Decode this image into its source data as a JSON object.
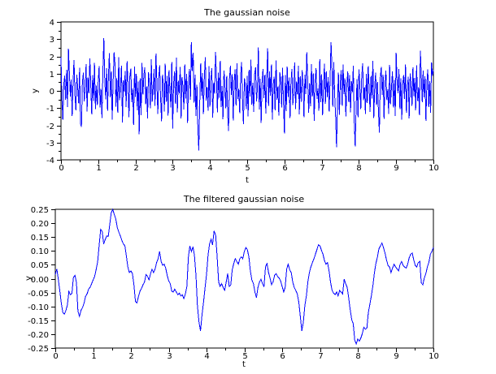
{
  "figure": {
    "background": "#ffffff",
    "axis_color": "#000000",
    "line_color": "#0000ff"
  },
  "chart_data": [
    {
      "type": "line",
      "title": "The gaussian noise",
      "xlabel": "t",
      "ylabel": "y",
      "xlim": [
        0,
        10
      ],
      "ylim": [
        -4,
        4
      ],
      "x_ticks": [
        0,
        1,
        2,
        3,
        4,
        5,
        6,
        7,
        8,
        9,
        10
      ],
      "x_tick_labels": [
        "0",
        "1",
        "2",
        "3",
        "4",
        "5",
        "6",
        "7",
        "8",
        "9",
        "10"
      ],
      "y_ticks": [
        4,
        3,
        2,
        1,
        0,
        -1,
        -2,
        -3,
        -4
      ],
      "y_tick_labels": [
        "4",
        "3",
        "2",
        "1",
        "0",
        "-1",
        "-2",
        "-3",
        "-4"
      ],
      "x_minor_step": 0.5,
      "y_minor_step": 0.5,
      "grid": false,
      "legend": null,
      "color": "#0000ff",
      "x_start": 0,
      "x_step": 0.025,
      "y_values": [
        1.95,
        -0.42,
        -1.68,
        0.35,
        0.88,
        -0.51,
        1.22,
        -0.94,
        2.45,
        1.1,
        -0.33,
        0.67,
        -1.45,
        0.52,
        1.78,
        -0.26,
        -1.12,
        0.94,
        0.18,
        -0.73,
        1.35,
        -1.92,
        -2.08,
        0.44,
        1.05,
        -0.61,
        0.23,
        1.56,
        -1.21,
        0.78,
        -0.15,
        1.88,
        0.41,
        -1.37,
        0.92,
        -0.58,
        1.62,
        -1.05,
        0.31,
        -0.82,
        0.57,
        1.44,
        -0.96,
        0.12,
        -1.58,
        1.02,
        3.05,
        0.66,
        -0.49,
        1.31,
        -1.15,
        0.85,
        2.18,
        -0.37,
        1.12,
        -1.66,
        0.48,
        2.24,
        1.58,
        -0.91,
        0.73,
        -1.28,
        1.95,
        -0.54,
        0.29,
        1.47,
        -1.83,
        0.61,
        -0.08,
        1.16,
        -0.95,
        1.71,
        0.38,
        -1.52,
        0.84,
        1.29,
        -0.67,
        0.15,
        -1.98,
        1.41,
        -0.36,
        0.98,
        -1.14,
        0.55,
        -2.52,
        0.72,
        -1.41,
        1.63,
        -0.22,
        0.89,
        1.37,
        -0.78,
        0.26,
        -1.59,
        1.08,
        0.47,
        -1.02,
        1.84,
        -0.63,
        0.19,
        1.26,
        -0.88,
        2.16,
        0.53,
        -1.34,
        0.71,
        1.49,
        -0.41,
        -1.76,
        0.95,
        0.34,
        -1.19,
        1.58,
        -0.64,
        0.87,
        -1.43,
        1.21,
        0.06,
        -0.97,
        1.66,
        -2.18,
        0.42,
        1.13,
        -0.76,
        1.92,
        -1.24,
        0.58,
        -0.13,
        1.38,
        -1.61,
        0.81,
        0.24,
        -1.08,
        1.54,
        -0.45,
        0.99,
        -1.87,
        0.62,
        1.27,
        -0.52,
        2.82,
        1.15,
        2.21,
        -0.68,
        0.93,
        -1.47,
        0.36,
        -2.05,
        -3.45,
        -0.84,
        1.61,
        -0.29,
        1.04,
        -1.33,
        0.77,
        1.96,
        -0.56,
        0.21,
        -1.15,
        1.43,
        -0.91,
        0.64,
        1.32,
        -1.56,
        0.48,
        -0.17,
        2.26,
        0.83,
        -1.25,
        1.07,
        -0.39,
        1.74,
        -0.94,
        0.28,
        -1.64,
        1.18,
        0.51,
        -1.02,
        0.86,
        -1.38,
        -2.32,
        0.69,
        1.45,
        -0.23,
        0.97,
        -1.71,
        0.44,
        1.24,
        -0.85,
        1.59,
        -0.46,
        0.11,
        -1.29,
        0.92,
        1.67,
        -0.58,
        -1.94,
        0.74,
        0.32,
        -1.06,
        0.88,
        -1.48,
        1.22,
        -0.34,
        1.81,
        -0.79,
        0.46,
        -1.23,
        0.98,
        1.36,
        -0.62,
        0.14,
        2.52,
        -1.09,
        0.71,
        -1.85,
        0.57,
        1.28,
        -0.42,
        0.93,
        -1.31,
        0.66,
        2.47,
        -0.87,
        1.14,
        -0.28,
        1.53,
        -1.67,
        0.39,
        0.82,
        -1.12,
        1.76,
        -0.51,
        0.25,
        -1.44,
        1.08,
        0.63,
        -0.96,
        1.35,
        -0.74,
        -2.48,
        0.91,
        -1.18,
        1.42,
        -0.35,
        0.78,
        -1.58,
        0.49,
        1.26,
        -0.83,
        0.17,
        1.64,
        -1.05,
        0.54,
        -0.21,
        1.47,
        -1.36,
        0.85,
        -0.64,
        1.19,
        0.37,
        -1.52,
        0.94,
        -0.18,
        2.23,
        0.68,
        -1.27,
        0.45,
        -0.89,
        1.55,
        -0.33,
        1.02,
        -1.73,
        0.59,
        1.31,
        -0.48,
        0.13,
        -1.16,
        1.84,
        -0.67,
        0.96,
        -1.42,
        0.29,
        1.58,
        -0.75,
        1.12,
        -0.37,
        0.81,
        -1.21,
        0.52,
        2.83,
        1.45,
        -0.92,
        1.68,
        -0.26,
        -1.55,
        -3.28,
        -0.61,
        1.07,
        -1.39,
        0.43,
        1.21,
        -0.86,
        1.52,
        -0.19,
        0.74,
        -1.48,
        0.31,
        1.13,
        -0.65,
        0.92,
        -1.24,
        0.56,
        -0.08,
        1.46,
        -1.81,
        -3.22,
        -0.94,
        0.68,
        -1.52,
        1.25,
        0.41,
        -1.07,
        0.79,
        1.61,
        -0.53,
        0.22,
        -1.35,
        0.98,
        -0.71,
        1.44,
        0.16,
        -1.22,
        0.87,
        -0.44,
        1.73,
        -1.58,
        0.34,
        1.06,
        -0.82,
        0.51,
        -1.16,
        -2.42,
        0.77,
        1.39,
        -0.24,
        0.95,
        -1.62,
        0.43,
        1.18,
        -0.55,
        0.09,
        -1.33,
        1.51,
        -0.78,
        0.26,
        1.12,
        -0.96,
        0.64,
        -1.45,
        2.21,
        0.58,
        -0.14,
        1.27,
        -1.05,
        0.72,
        -1.68,
        0.36,
        0.91,
        -0.47,
        1.54,
        -1.26,
        0.19,
        0.83,
        -1.59,
        1.02,
        0.45,
        -0.88,
        1.36,
        -0.31,
        0.76,
        -1.13,
        1.48,
        -0.59,
        0.21,
        -1.41,
        2.32,
        0.94,
        -0.66,
        1.17,
        -0.38,
        0.85,
        -1.74,
        0.49,
        1.24,
        -0.93,
        0.57,
        -1.28,
        1.65,
        0.88,
        1.21
      ]
    },
    {
      "type": "line",
      "title": "The filtered gaussian noise",
      "xlabel": "t",
      "ylabel": "y",
      "xlim": [
        0,
        10
      ],
      "ylim": [
        -0.25,
        0.25
      ],
      "x_ticks": [
        0,
        1,
        2,
        3,
        4,
        5,
        6,
        7,
        8,
        9,
        10
      ],
      "x_tick_labels": [
        "0",
        "1",
        "2",
        "3",
        "4",
        "5",
        "6",
        "7",
        "8",
        "9",
        "10"
      ],
      "y_ticks": [
        0.25,
        0.2,
        0.15,
        0.1,
        0.05,
        0.0,
        -0.05,
        -0.1,
        -0.15,
        -0.2,
        -0.25
      ],
      "y_tick_labels": [
        "0.25",
        "0.20",
        "0.15",
        "0.10",
        "0.05",
        "0.00",
        "-0.05",
        "-0.10",
        "-0.15",
        "-0.20",
        "-0.25"
      ],
      "x_minor_step": 0.5,
      "y_minor_step": null,
      "grid": false,
      "legend": null,
      "color": "#0000ff",
      "x_start": 0,
      "x_step": 0.04,
      "y_values": [
        0.015,
        0.035,
        -0.002,
        -0.045,
        -0.088,
        -0.122,
        -0.128,
        -0.115,
        -0.095,
        -0.046,
        -0.058,
        -0.052,
        0.005,
        0.012,
        -0.014,
        -0.118,
        -0.136,
        -0.114,
        -0.104,
        -0.089,
        -0.064,
        -0.055,
        -0.038,
        -0.031,
        -0.019,
        -0.005,
        0.008,
        0.032,
        0.061,
        0.118,
        0.178,
        0.17,
        0.125,
        0.141,
        0.154,
        0.152,
        0.195,
        0.238,
        0.249,
        0.232,
        0.215,
        0.184,
        0.168,
        0.154,
        0.138,
        0.126,
        0.118,
        0.082,
        0.041,
        0.022,
        0.028,
        0.018,
        -0.022,
        -0.082,
        -0.088,
        -0.064,
        -0.045,
        -0.035,
        -0.022,
        -0.012,
        0.015,
        0.008,
        -0.004,
        0.018,
        0.034,
        0.022,
        0.035,
        0.058,
        0.072,
        0.098,
        0.062,
        0.048,
        0.052,
        0.038,
        0.012,
        -0.008,
        -0.018,
        -0.045,
        -0.048,
        -0.038,
        -0.048,
        -0.058,
        -0.052,
        -0.062,
        -0.058,
        -0.072,
        -0.055,
        -0.028,
        0.078,
        0.118,
        0.098,
        0.115,
        0.085,
        0.012,
        -0.098,
        -0.155,
        -0.188,
        -0.132,
        -0.085,
        -0.035,
        0.015,
        0.085,
        0.125,
        0.142,
        0.122,
        0.172,
        0.158,
        0.082,
        -0.012,
        -0.028,
        -0.018,
        -0.032,
        -0.042,
        -0.012,
        0.018,
        -0.028,
        -0.022,
        0.032,
        0.055,
        0.072,
        0.062,
        0.052,
        0.072,
        0.078,
        0.072,
        0.098,
        0.112,
        0.105,
        0.078,
        0.028,
        -0.005,
        -0.018,
        -0.048,
        -0.068,
        -0.032,
        -0.012,
        -0.002,
        -0.018,
        -0.028,
        0.042,
        0.055,
        0.022,
        0.002,
        -0.022,
        -0.012,
        0.012,
        0.018,
        0.008,
        0.002,
        -0.008,
        -0.028,
        -0.048,
        -0.032,
        0.035,
        0.052,
        0.032,
        0.022,
        -0.012,
        -0.032,
        -0.042,
        -0.055,
        -0.085,
        -0.135,
        -0.188,
        -0.158,
        -0.098,
        -0.062,
        -0.012,
        0.022,
        0.042,
        0.058,
        0.072,
        0.088,
        0.105,
        0.122,
        0.118,
        0.102,
        0.088,
        0.065,
        0.052,
        0.058,
        0.028,
        -0.012,
        -0.042,
        -0.052,
        -0.058,
        -0.048,
        -0.062,
        -0.042,
        -0.048,
        -0.055,
        -0.002,
        -0.018,
        -0.032,
        -0.068,
        -0.112,
        -0.148,
        -0.162,
        -0.222,
        -0.235,
        -0.218,
        -0.225,
        -0.215,
        -0.198,
        -0.175,
        -0.182,
        -0.178,
        -0.122,
        -0.092,
        -0.062,
        -0.025,
        0.022,
        0.055,
        0.078,
        0.108,
        0.118,
        0.128,
        0.112,
        0.092,
        0.068,
        0.048,
        0.042,
        0.022,
        0.038,
        0.052,
        0.042,
        0.035,
        0.028,
        0.052,
        0.062,
        0.048,
        0.042,
        0.038,
        0.052,
        0.075,
        0.088,
        0.092,
        0.068,
        0.048,
        0.042,
        0.058,
        0.062,
        -0.015,
        -0.022,
        0.002,
        0.018,
        0.042,
        0.058,
        0.088,
        0.098,
        0.112
      ]
    }
  ]
}
